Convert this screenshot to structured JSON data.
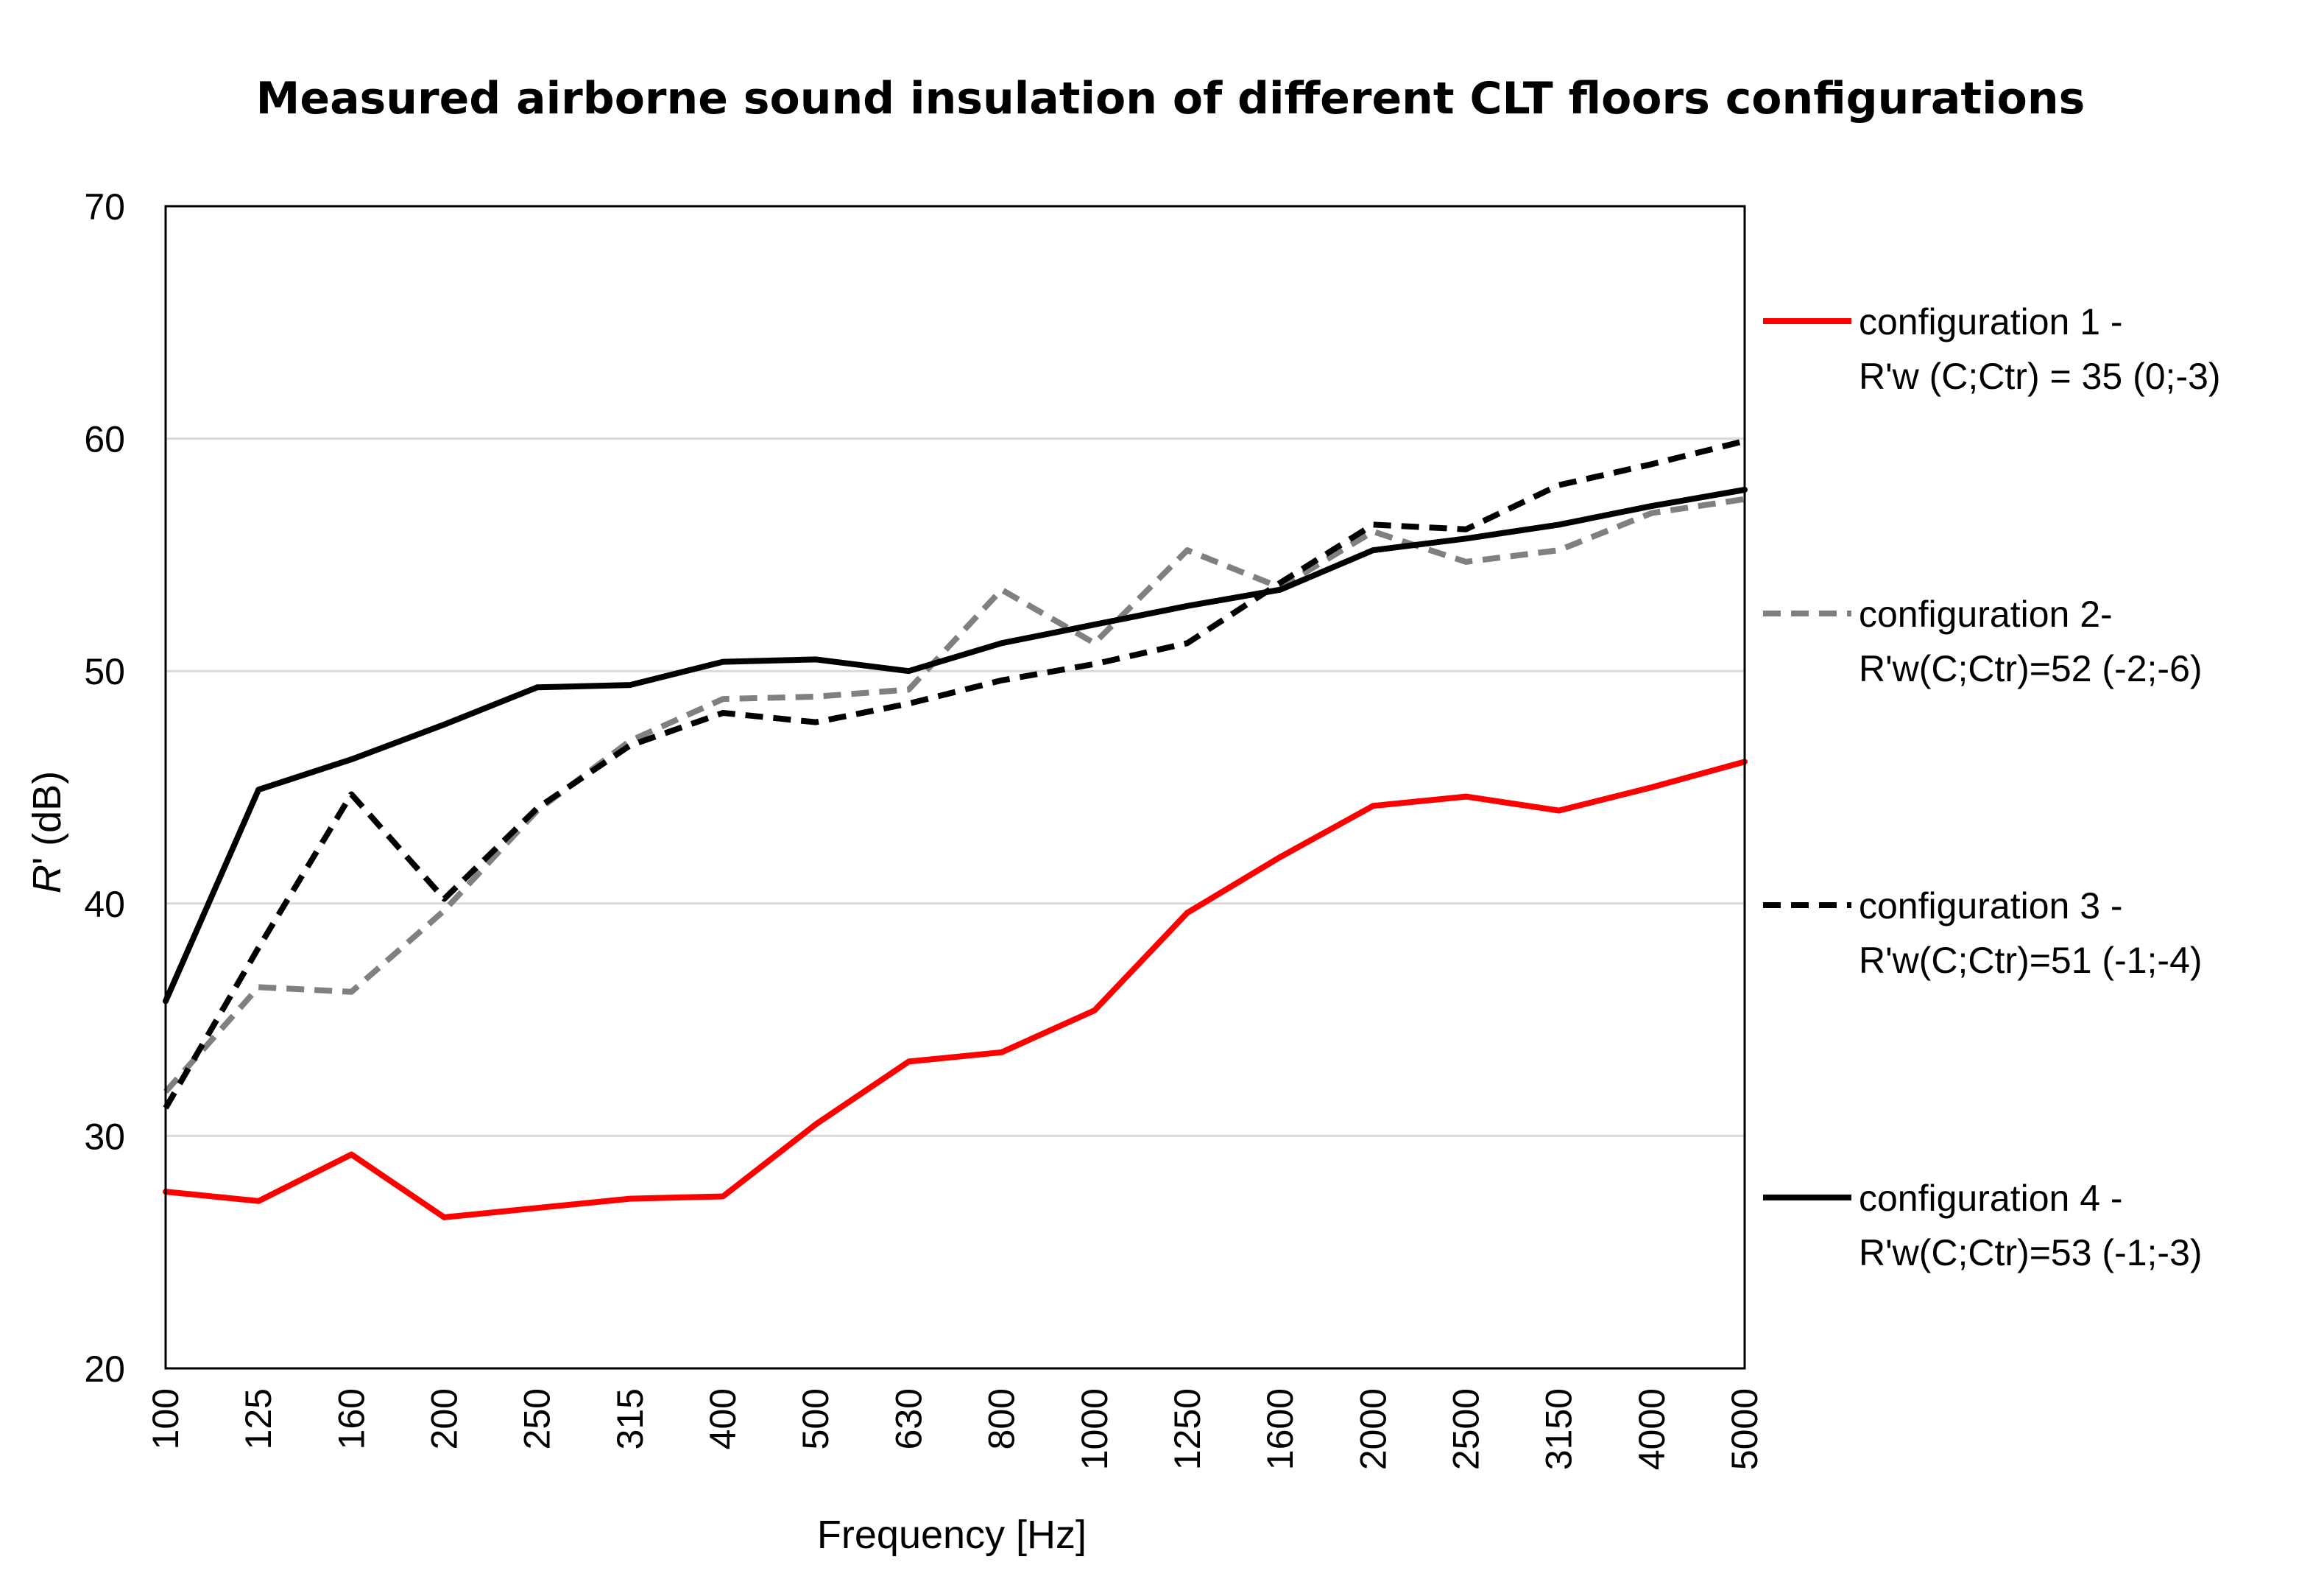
{
  "chart_data": {
    "type": "line",
    "title": "Measured airborne sound insulation of different CLT floors configurations",
    "xlabel": "Frequency [Hz]",
    "ylabel_italic": "R",
    "ylabel_rest": "' (dB)",
    "ylim": [
      20,
      70
    ],
    "yticks": [
      20,
      30,
      40,
      50,
      60,
      70
    ],
    "grid": true,
    "legend_position": "right",
    "categories": [
      "100",
      "125",
      "160",
      "200",
      "250",
      "315",
      "400",
      "500",
      "630",
      "800",
      "1000",
      "1250",
      "1600",
      "2000",
      "2500",
      "3150",
      "4000",
      "5000"
    ],
    "series": [
      {
        "name": "configuration 1 -",
        "name_line2": "R'w (C;Ctr) = 35 (0;-3)",
        "color": "#ff0000",
        "dash": "solid",
        "values": [
          27.6,
          27.2,
          29.2,
          26.5,
          26.9,
          27.3,
          27.4,
          30.5,
          33.2,
          33.6,
          35.4,
          39.6,
          42.0,
          44.2,
          44.6,
          44.0,
          45.0,
          46.1
        ]
      },
      {
        "name": "configuration 2-",
        "name_line2": "R'w(C;Ctr)=52 (-2;-6)",
        "color": "#808080",
        "dash": "dashed",
        "values": [
          31.9,
          36.4,
          36.2,
          39.7,
          44.0,
          47.0,
          48.8,
          48.9,
          49.2,
          53.5,
          51.2,
          55.2,
          53.6,
          56.0,
          54.7,
          55.2,
          56.8,
          57.4
        ]
      },
      {
        "name": "configuration 3 -",
        "name_line2": "R'w(C;Ctr)=51 (-1;-4)",
        "color": "#000000",
        "dash": "dashed",
        "values": [
          31.2,
          38.1,
          44.7,
          40.2,
          44.1,
          46.8,
          48.2,
          47.8,
          48.6,
          49.6,
          50.3,
          51.2,
          53.8,
          56.3,
          56.1,
          58.0,
          58.9,
          59.9
        ]
      },
      {
        "name": "configuration 4 -",
        "name_line2": "R'w(C;Ctr)=53 (-1;-3)",
        "color": "#000000",
        "dash": "solid",
        "values": [
          35.8,
          44.9,
          46.2,
          47.7,
          49.3,
          49.4,
          50.4,
          50.5,
          50.0,
          51.2,
          52.0,
          52.8,
          53.5,
          55.2,
          55.7,
          56.3,
          57.1,
          57.8
        ]
      }
    ]
  }
}
